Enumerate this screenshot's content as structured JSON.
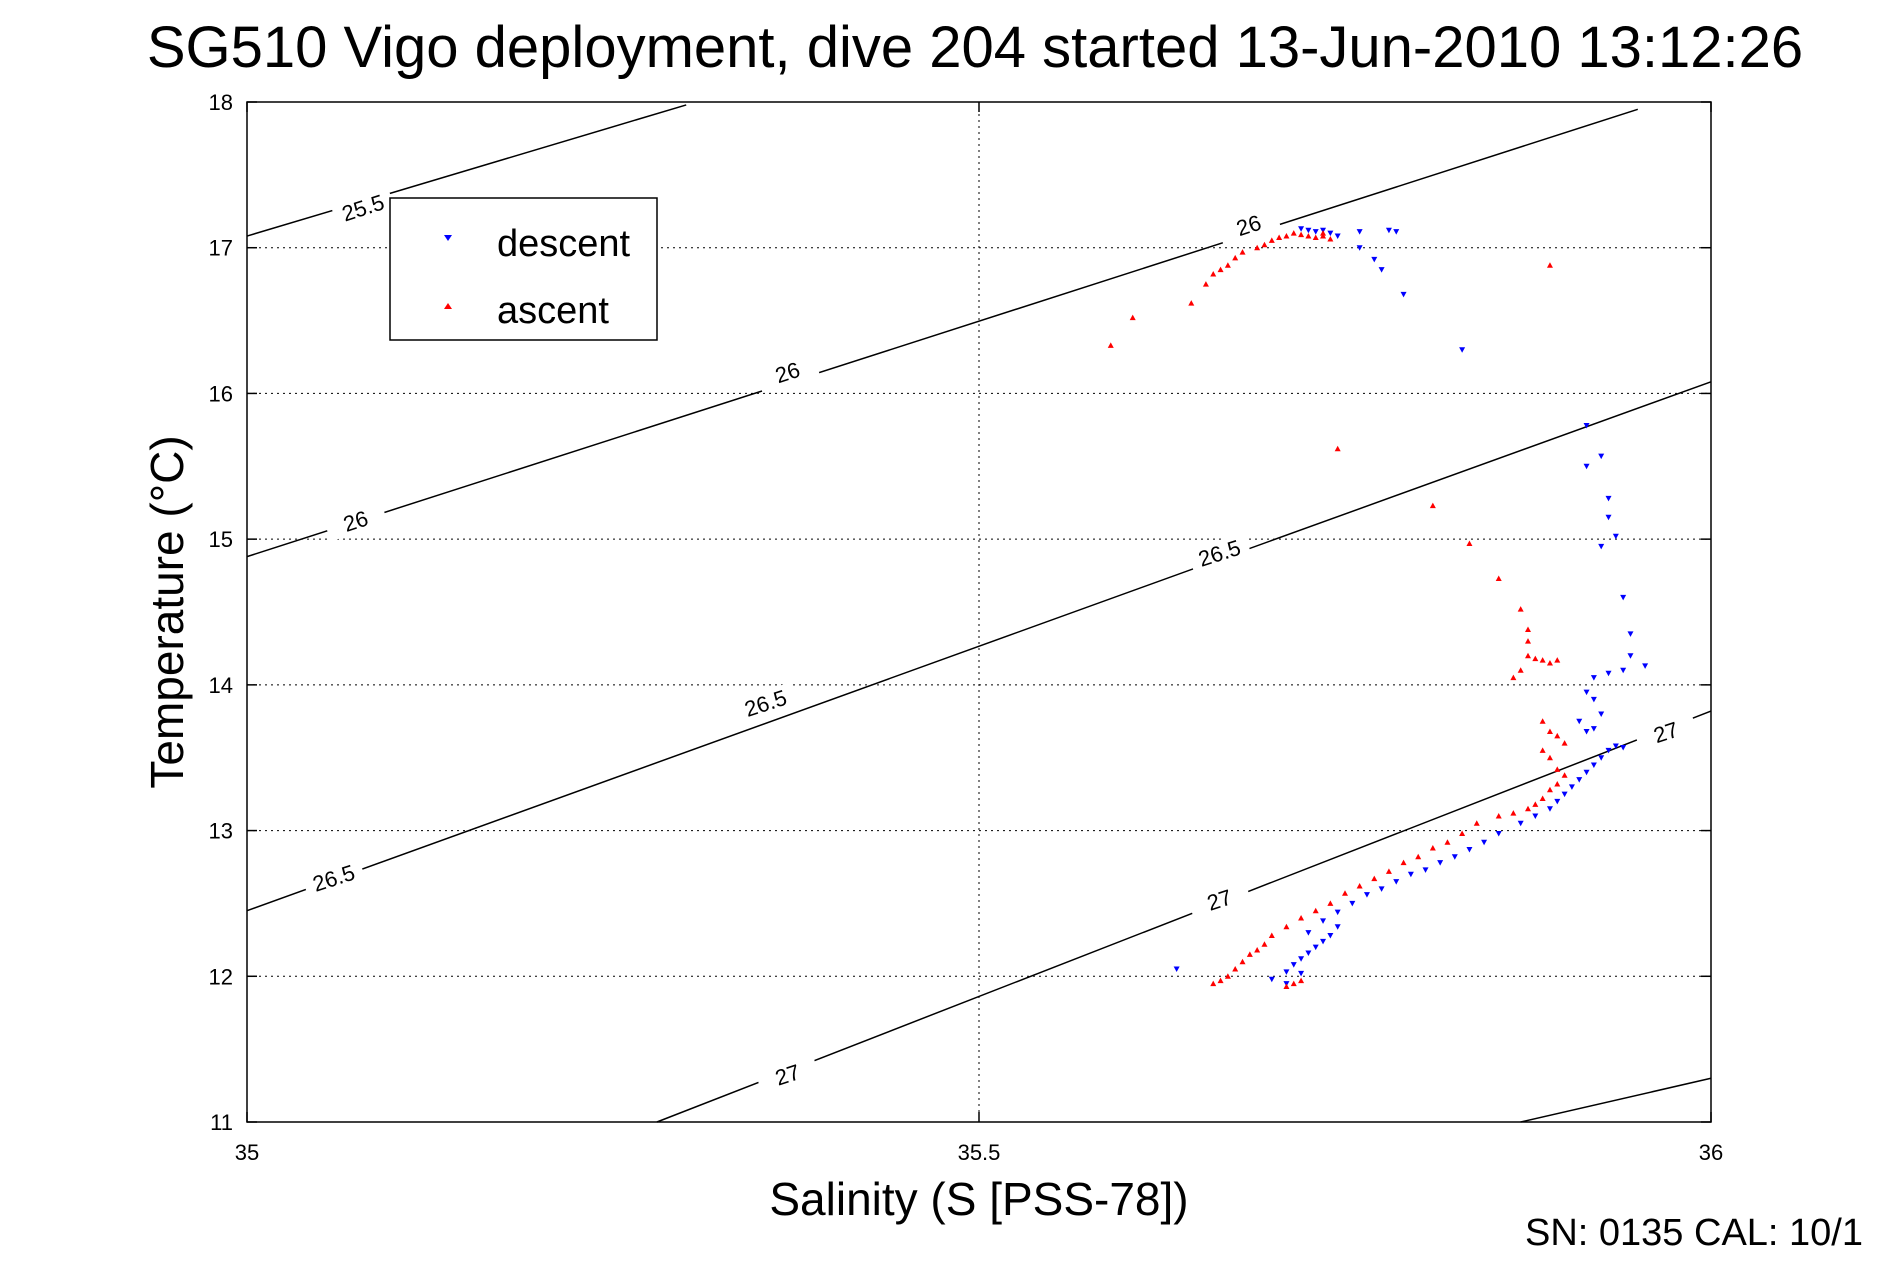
{
  "chart_data": {
    "type": "scatter",
    "title": "SG510 Vigo deployment, dive 204 started 13-Jun-2010 13:12:26",
    "xlabel": "Salinity (S [PSS-78])",
    "ylabel": "Temperature (°C)",
    "xlim": [
      35,
      36
    ],
    "ylim": [
      11,
      18
    ],
    "x_ticks": [
      35,
      35.5,
      36
    ],
    "x_tick_labels": [
      "35",
      "35.5",
      "36"
    ],
    "y_ticks": [
      11,
      12,
      13,
      14,
      15,
      16,
      17,
      18
    ],
    "y_tick_labels": [
      "11",
      "12",
      "13",
      "14",
      "15",
      "16",
      "17",
      "18"
    ],
    "grid": true,
    "legend_position": "top-left",
    "footer": "SN: 0135  CAL: 10/1",
    "contours": [
      {
        "level": "25.5",
        "points": [
          [
            35.0,
            17.08
          ],
          [
            35.3,
            17.98
          ]
        ]
      },
      {
        "level": "26",
        "points": [
          [
            35.0,
            14.88
          ],
          [
            35.95,
            17.95
          ]
        ]
      },
      {
        "level": "26.5",
        "points": [
          [
            35.0,
            12.45
          ],
          [
            36.0,
            16.08
          ]
        ]
      },
      {
        "level": "27",
        "points": [
          [
            35.28,
            11.0
          ],
          [
            36.0,
            13.82
          ]
        ]
      },
      {
        "level": "",
        "points": [
          [
            35.87,
            11.0
          ],
          [
            36.0,
            11.3
          ]
        ]
      }
    ],
    "contour_labels": [
      {
        "text": "25.5",
        "x": 35.08,
        "y": 17.25
      },
      {
        "text": "26",
        "x": 35.37,
        "y": 16.12
      },
      {
        "text": "26",
        "x": 35.075,
        "y": 15.1
      },
      {
        "text": "26",
        "x": 35.685,
        "y": 17.13
      },
      {
        "text": "26.5",
        "x": 35.355,
        "y": 13.85
      },
      {
        "text": "26.5",
        "x": 35.06,
        "y": 12.65
      },
      {
        "text": "26.5",
        "x": 35.665,
        "y": 14.88
      },
      {
        "text": "27",
        "x": 35.37,
        "y": 11.3
      },
      {
        "text": "27",
        "x": 35.665,
        "y": 12.5
      },
      {
        "text": "27",
        "x": 35.97,
        "y": 13.65
      }
    ],
    "series": [
      {
        "name": "descent",
        "color": "#0000ff",
        "marker": "triangle-down",
        "points": [
          [
            35.72,
            17.13
          ],
          [
            35.725,
            17.12
          ],
          [
            35.73,
            17.11
          ],
          [
            35.735,
            17.12
          ],
          [
            35.74,
            17.1
          ],
          [
            35.745,
            17.08
          ],
          [
            35.76,
            17.11
          ],
          [
            35.78,
            17.12
          ],
          [
            35.785,
            17.11
          ],
          [
            35.76,
            17.0
          ],
          [
            35.77,
            16.92
          ],
          [
            35.775,
            16.85
          ],
          [
            35.79,
            16.68
          ],
          [
            35.83,
            16.3
          ],
          [
            35.635,
            12.05
          ],
          [
            35.915,
            15.78
          ],
          [
            35.915,
            15.5
          ],
          [
            35.925,
            15.57
          ],
          [
            35.93,
            15.28
          ],
          [
            35.93,
            15.15
          ],
          [
            35.935,
            15.02
          ],
          [
            35.925,
            14.95
          ],
          [
            35.94,
            14.6
          ],
          [
            35.945,
            14.35
          ],
          [
            35.945,
            14.2
          ],
          [
            35.955,
            14.13
          ],
          [
            35.94,
            14.1
          ],
          [
            35.93,
            14.08
          ],
          [
            35.92,
            14.05
          ],
          [
            35.915,
            13.95
          ],
          [
            35.92,
            13.9
          ],
          [
            35.925,
            13.8
          ],
          [
            35.91,
            13.75
          ],
          [
            35.92,
            13.7
          ],
          [
            35.915,
            13.68
          ],
          [
            35.935,
            13.58
          ],
          [
            35.94,
            13.57
          ],
          [
            35.93,
            13.55
          ],
          [
            35.925,
            13.5
          ],
          [
            35.92,
            13.45
          ],
          [
            35.915,
            13.4
          ],
          [
            35.91,
            13.35
          ],
          [
            35.905,
            13.3
          ],
          [
            35.9,
            13.25
          ],
          [
            35.895,
            13.2
          ],
          [
            35.89,
            13.15
          ],
          [
            35.88,
            13.1
          ],
          [
            35.87,
            13.05
          ],
          [
            35.855,
            12.98
          ],
          [
            35.845,
            12.92
          ],
          [
            35.835,
            12.87
          ],
          [
            35.825,
            12.82
          ],
          [
            35.815,
            12.78
          ],
          [
            35.805,
            12.73
          ],
          [
            35.795,
            12.7
          ],
          [
            35.785,
            12.65
          ],
          [
            35.775,
            12.6
          ],
          [
            35.765,
            12.56
          ],
          [
            35.755,
            12.5
          ],
          [
            35.745,
            12.44
          ],
          [
            35.735,
            12.38
          ],
          [
            35.725,
            12.3
          ],
          [
            35.745,
            12.34
          ],
          [
            35.74,
            12.28
          ],
          [
            35.735,
            12.24
          ],
          [
            35.73,
            12.2
          ],
          [
            35.725,
            12.16
          ],
          [
            35.72,
            12.12
          ],
          [
            35.715,
            12.08
          ],
          [
            35.71,
            12.03
          ],
          [
            35.7,
            11.98
          ],
          [
            35.72,
            12.02
          ],
          [
            35.71,
            11.95
          ]
        ]
      },
      {
        "name": "ascent",
        "color": "#ff0000",
        "marker": "triangle-up",
        "points": [
          [
            35.59,
            16.33
          ],
          [
            35.605,
            16.52
          ],
          [
            35.645,
            16.62
          ],
          [
            35.655,
            16.75
          ],
          [
            35.66,
            16.82
          ],
          [
            35.665,
            16.85
          ],
          [
            35.67,
            16.88
          ],
          [
            35.675,
            16.93
          ],
          [
            35.68,
            16.97
          ],
          [
            35.69,
            17.0
          ],
          [
            35.695,
            17.02
          ],
          [
            35.7,
            17.05
          ],
          [
            35.705,
            17.07
          ],
          [
            35.71,
            17.08
          ],
          [
            35.715,
            17.1
          ],
          [
            35.72,
            17.09
          ],
          [
            35.725,
            17.08
          ],
          [
            35.73,
            17.07
          ],
          [
            35.735,
            17.08
          ],
          [
            35.735,
            17.1
          ],
          [
            35.74,
            17.06
          ],
          [
            35.89,
            16.88
          ],
          [
            35.745,
            15.62
          ],
          [
            35.81,
            15.23
          ],
          [
            35.835,
            14.97
          ],
          [
            35.855,
            14.73
          ],
          [
            35.87,
            14.52
          ],
          [
            35.875,
            14.38
          ],
          [
            35.875,
            14.3
          ],
          [
            35.875,
            14.2
          ],
          [
            35.88,
            14.18
          ],
          [
            35.885,
            14.17
          ],
          [
            35.89,
            14.15
          ],
          [
            35.895,
            14.17
          ],
          [
            35.87,
            14.1
          ],
          [
            35.865,
            14.05
          ],
          [
            35.885,
            13.75
          ],
          [
            35.89,
            13.68
          ],
          [
            35.895,
            13.65
          ],
          [
            35.9,
            13.6
          ],
          [
            35.885,
            13.55
          ],
          [
            35.89,
            13.5
          ],
          [
            35.895,
            13.42
          ],
          [
            35.9,
            13.38
          ],
          [
            35.895,
            13.32
          ],
          [
            35.89,
            13.28
          ],
          [
            35.885,
            13.22
          ],
          [
            35.88,
            13.18
          ],
          [
            35.875,
            13.15
          ],
          [
            35.865,
            13.12
          ],
          [
            35.855,
            13.1
          ],
          [
            35.84,
            13.05
          ],
          [
            35.83,
            12.98
          ],
          [
            35.82,
            12.92
          ],
          [
            35.81,
            12.88
          ],
          [
            35.8,
            12.82
          ],
          [
            35.79,
            12.78
          ],
          [
            35.78,
            12.72
          ],
          [
            35.77,
            12.67
          ],
          [
            35.76,
            12.62
          ],
          [
            35.75,
            12.57
          ],
          [
            35.74,
            12.5
          ],
          [
            35.73,
            12.45
          ],
          [
            35.72,
            12.4
          ],
          [
            35.71,
            12.34
          ],
          [
            35.7,
            12.28
          ],
          [
            35.695,
            12.22
          ],
          [
            35.69,
            12.18
          ],
          [
            35.685,
            12.15
          ],
          [
            35.68,
            12.1
          ],
          [
            35.675,
            12.05
          ],
          [
            35.67,
            12.0
          ],
          [
            35.665,
            11.97
          ],
          [
            35.66,
            11.95
          ],
          [
            35.71,
            11.93
          ],
          [
            35.715,
            11.95
          ],
          [
            35.72,
            11.97
          ]
        ]
      }
    ]
  }
}
